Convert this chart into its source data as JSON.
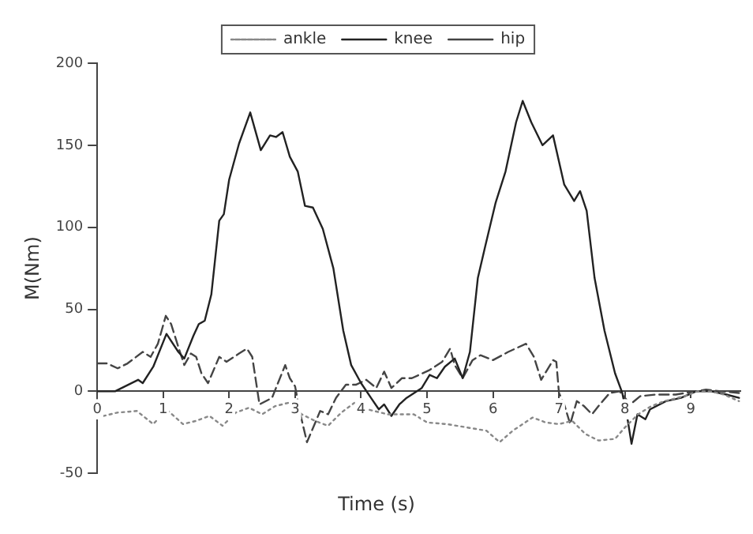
{
  "chart_data": {
    "type": "line",
    "xlabel": "Time (s)",
    "ylabel": "M(Nm)",
    "xlim": [
      0,
      9.75
    ],
    "xticks": [
      0,
      1,
      2,
      3,
      4,
      5,
      6,
      7,
      8,
      9
    ],
    "ylim": [
      -50,
      200
    ],
    "yticks": [
      -50,
      0,
      50,
      100,
      150,
      200
    ],
    "grid": false,
    "legend": "top",
    "marker": "none",
    "series": [
      {
        "name": "ankle",
        "color": "#888888",
        "line_style": "dotted",
        "x": [
          0,
          0.3,
          0.6,
          0.85,
          1.05,
          1.3,
          1.5,
          1.7,
          1.9,
          2.1,
          2.3,
          2.5,
          2.7,
          2.9,
          3.1,
          3.3,
          3.5,
          3.7,
          3.9,
          4.1,
          4.4,
          4.8,
          5.0,
          5.3,
          5.6,
          5.9,
          6.1,
          6.3,
          6.6,
          6.8,
          7.0,
          7.2,
          7.4,
          7.6,
          7.85,
          8.0,
          8.2,
          8.4,
          8.6,
          8.9,
          9.1,
          9.3,
          9.5,
          9.73
        ],
        "values": [
          -16,
          -13,
          -12,
          -20,
          -11,
          -20,
          -18,
          -15,
          -21,
          -13,
          -10,
          -14,
          -9,
          -7,
          -14,
          -18,
          -21,
          -13,
          -7,
          -11,
          -14,
          -14,
          -19,
          -20,
          -22,
          -24,
          -31,
          -24,
          -16,
          -19,
          -20,
          -18,
          -26,
          -30,
          -29,
          -22,
          -14,
          -9,
          -6,
          -3,
          0,
          0,
          -2,
          -6
        ]
      },
      {
        "name": "knee",
        "color": "#222222",
        "line_style": "solid",
        "x": [
          0,
          0.27,
          0.62,
          0.69,
          0.85,
          1.05,
          1.23,
          1.32,
          1.46,
          1.54,
          1.63,
          1.73,
          1.85,
          1.92,
          2.0,
          2.15,
          2.32,
          2.48,
          2.62,
          2.71,
          2.81,
          2.92,
          3.04,
          3.15,
          3.27,
          3.42,
          3.58,
          3.73,
          3.85,
          4.0,
          4.15,
          4.27,
          4.35,
          4.46,
          4.58,
          4.69,
          4.92,
          5.04,
          5.15,
          5.27,
          5.42,
          5.54,
          5.65,
          5.77,
          5.88,
          6.04,
          6.19,
          6.35,
          6.45,
          6.58,
          6.75,
          6.91,
          7.08,
          7.23,
          7.32,
          7.42,
          7.54,
          7.69,
          7.85,
          7.96,
          8.04,
          8.1,
          8.19,
          8.31,
          8.38,
          8.62,
          8.85,
          9.08,
          9.31,
          9.54,
          9.73
        ],
        "values": [
          0,
          0,
          7,
          5,
          15,
          35,
          24,
          20,
          34,
          41,
          43,
          59,
          104,
          108,
          129,
          151,
          170,
          147,
          156,
          155,
          158,
          143,
          134,
          113,
          112,
          99,
          75,
          37,
          16,
          5,
          -4,
          -11,
          -8,
          -15,
          -8,
          -4,
          2,
          10,
          8,
          15,
          20,
          8,
          24,
          69,
          88,
          115,
          134,
          164,
          177,
          164,
          150,
          156,
          126,
          116,
          122,
          110,
          69,
          37,
          11,
          -1,
          -17,
          -32,
          -14,
          -17,
          -11,
          -6,
          -4,
          0,
          0,
          -2,
          -4
        ]
      },
      {
        "name": "hip",
        "color": "#444444",
        "line_style": "dashed",
        "x": [
          0,
          0.15,
          0.31,
          0.46,
          0.69,
          0.81,
          0.92,
          1.04,
          1.12,
          1.23,
          1.32,
          1.42,
          1.5,
          1.58,
          1.68,
          1.85,
          1.96,
          2.15,
          2.27,
          2.35,
          2.46,
          2.65,
          2.85,
          2.92,
          3.0,
          3.08,
          3.18,
          3.38,
          3.5,
          3.62,
          3.77,
          3.92,
          4.08,
          4.23,
          4.35,
          4.46,
          4.62,
          4.77,
          5.04,
          5.23,
          5.35,
          5.42,
          5.54,
          5.69,
          5.81,
          6.0,
          6.23,
          6.5,
          6.62,
          6.73,
          6.91,
          6.96,
          7.0,
          7.08,
          7.17,
          7.27,
          7.38,
          7.5,
          7.62,
          7.77,
          7.92,
          8.08,
          8.23,
          8.46,
          8.77,
          9.08,
          9.23,
          9.46,
          9.73
        ],
        "values": [
          17,
          17,
          14,
          17,
          24,
          21,
          29,
          46,
          41,
          27,
          16,
          23,
          21,
          11,
          5,
          21,
          18,
          23,
          26,
          21,
          -8,
          -4,
          16,
          8,
          3,
          -14,
          -31,
          -12,
          -14,
          -4,
          4,
          4,
          7,
          2,
          12,
          2,
          8,
          8,
          13,
          18,
          26,
          16,
          8,
          19,
          22,
          19,
          24,
          29,
          21,
          7,
          19,
          18,
          -1,
          -8,
          -20,
          -6,
          -9,
          -14,
          -8,
          -1,
          0,
          -8,
          -3,
          -2,
          -2,
          0,
          1,
          0,
          -1
        ]
      }
    ]
  }
}
